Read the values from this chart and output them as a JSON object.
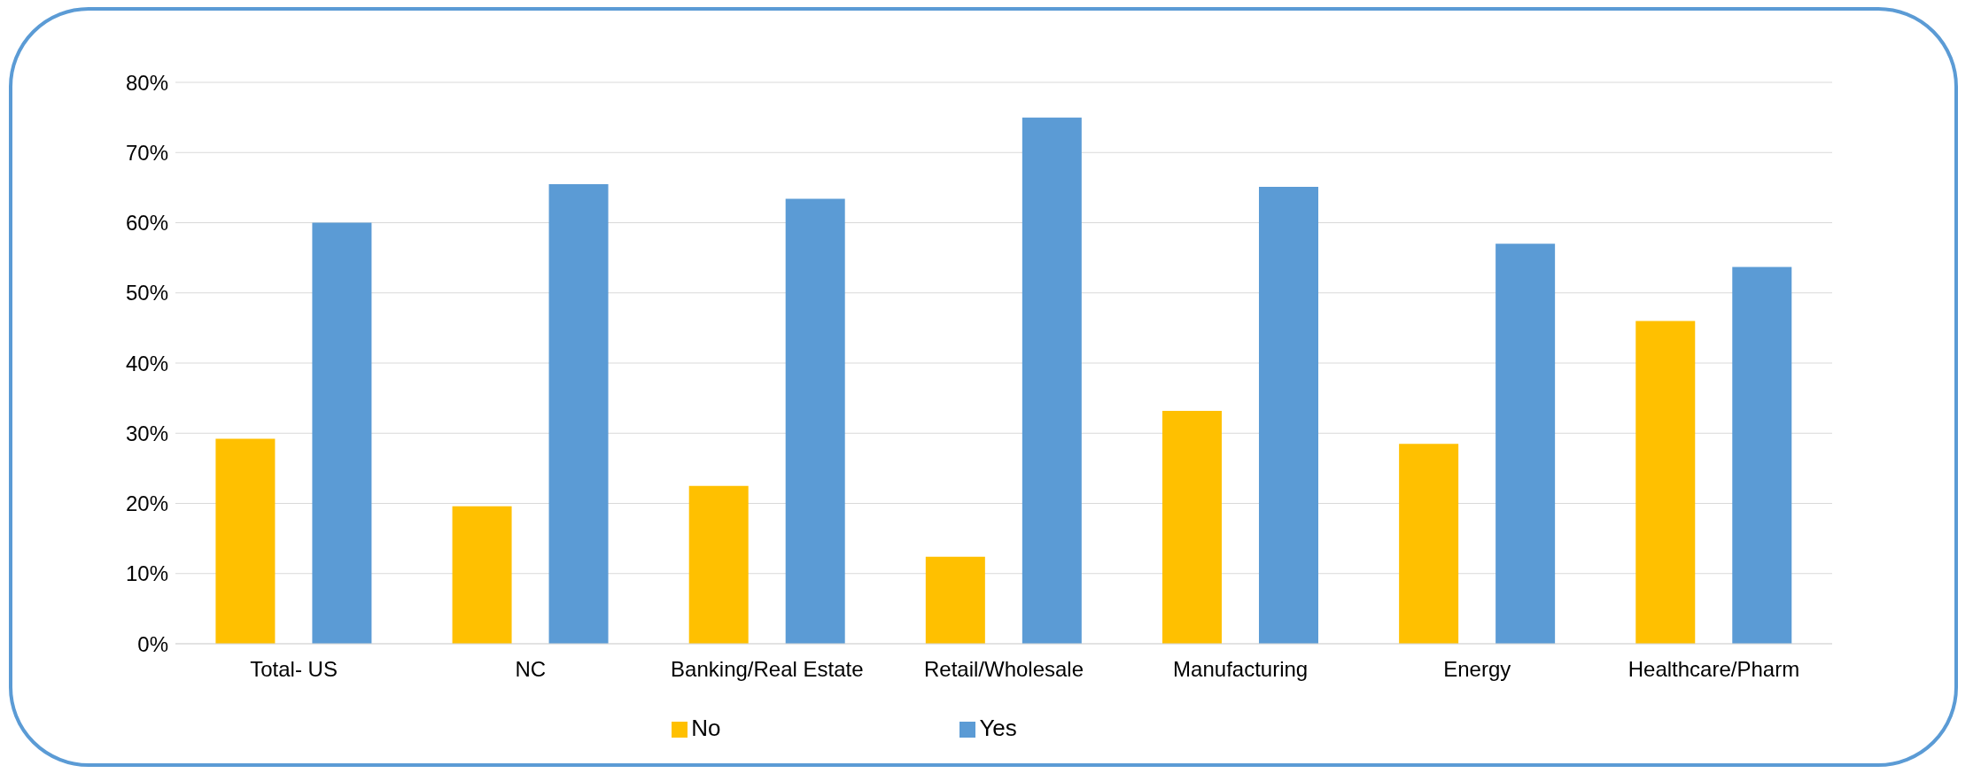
{
  "chart_data": {
    "type": "bar",
    "categories": [
      "Total- US",
      "NC",
      "Banking/Real Estate",
      "Retail/Wholesale",
      "Manufacturing",
      "Energy",
      "Healthcare/Pharm"
    ],
    "series": [
      {
        "name": "No",
        "color": "#ffc000",
        "values": [
          29.2,
          19.6,
          22.5,
          12.4,
          33.2,
          28.5,
          46.0
        ]
      },
      {
        "name": "Yes",
        "color": "#5b9bd5",
        "values": [
          60.0,
          65.5,
          63.4,
          75.0,
          65.1,
          57.0,
          53.7
        ]
      }
    ],
    "ylim": [
      0,
      80
    ],
    "yticks": [
      {
        "value": 0,
        "label": "0%"
      },
      {
        "value": 10,
        "label": "10%"
      },
      {
        "value": 20,
        "label": "20%"
      },
      {
        "value": 30,
        "label": "30%"
      },
      {
        "value": 40,
        "label": "40%"
      },
      {
        "value": 50,
        "label": "50%"
      },
      {
        "value": 60,
        "label": "60%"
      },
      {
        "value": 70,
        "label": "70%"
      },
      {
        "value": 80,
        "label": "80%"
      }
    ],
    "grid": "y",
    "legend": "bottom"
  }
}
